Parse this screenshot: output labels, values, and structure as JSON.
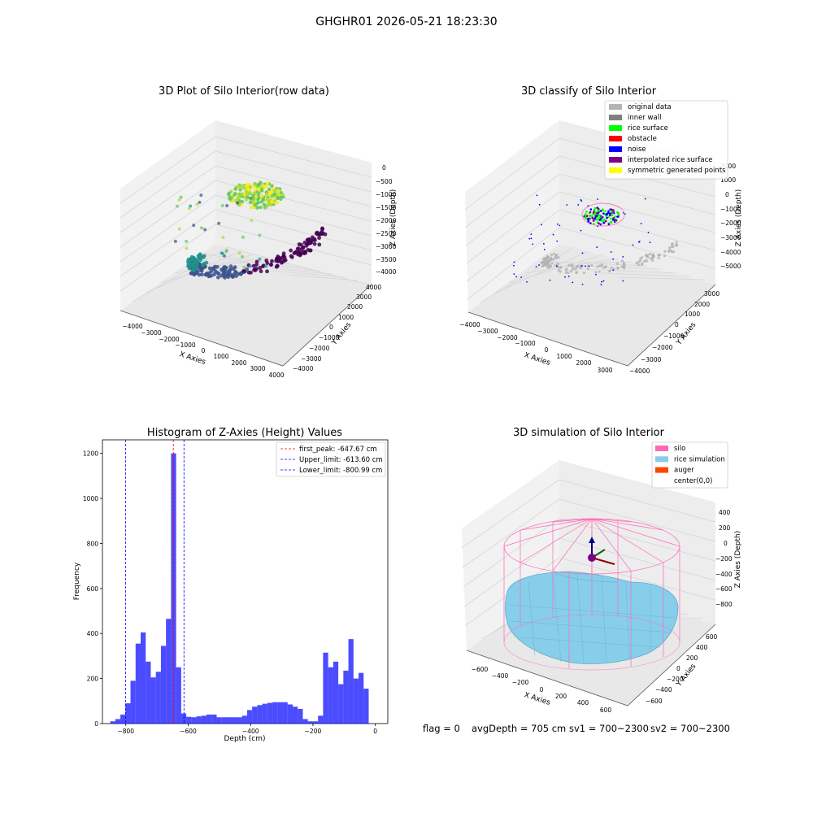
{
  "figure": {
    "suptitle": "GHGHR01 2026-05-21 18:23:30",
    "status": {
      "flag": "flag = 0",
      "avg_depth": "avgDepth = 705 cm",
      "sv1": "sv1 = 700~2300",
      "sv2": "sv2 = 700~2300"
    }
  },
  "chart_data": [
    {
      "type": "scatter",
      "projection": "3d",
      "title": "3D Plot of Silo Interior(row data)",
      "xlabel": "X Axies",
      "ylabel": "Y Axies",
      "zlabel": "Z Axies (Depth)",
      "xticks": [
        "−4000",
        "−3000",
        "−2000",
        "−1000",
        "0",
        "1000",
        "2000",
        "3000",
        "4000"
      ],
      "yticks": [
        "−4000",
        "−3000",
        "−2000",
        "−1000",
        "0",
        "1000",
        "2000",
        "3000",
        "4000"
      ],
      "zticks": [
        "0",
        "−500",
        "−1000",
        "−1500",
        "−2000",
        "−2500",
        "−3000",
        "−3500",
        "−4000"
      ],
      "colormap": "viridis",
      "grid": true
    },
    {
      "type": "scatter",
      "projection": "3d",
      "title": "3D classify of Silo Interior",
      "xlabel": "X Axies",
      "ylabel": "Y Axies",
      "zlabel": "Z Axies (Depth)",
      "xticks": [
        "−4000",
        "−3000",
        "−2000",
        "−1000",
        "0",
        "1000",
        "2000",
        "3000"
      ],
      "yticks": [
        "−4000",
        "−3000",
        "−2000",
        "−1000",
        "0",
        "1000",
        "2000",
        "3000"
      ],
      "zticks": [
        "2000",
        "1000",
        "0",
        "−1000",
        "−2000",
        "−3000",
        "−4000",
        "−5000"
      ],
      "legend_position": "upper-right",
      "legend": [
        {
          "label": "original data",
          "color": "#b3b3b3"
        },
        {
          "label": "inner wall",
          "color": "#808080"
        },
        {
          "label": "rice surface",
          "color": "#00ff00"
        },
        {
          "label": "obstacle",
          "color": "#ff0000"
        },
        {
          "label": "noise",
          "color": "#0000ff"
        },
        {
          "label": "interpolated rice surface",
          "color": "#800080"
        },
        {
          "label": "symmetric generated points",
          "color": "#ffff00"
        }
      ],
      "grid": true
    },
    {
      "type": "bar",
      "title": "Histogram of Z-Axies (Height) Values",
      "xlabel": "Depth (cm)",
      "ylabel": "Frequency",
      "xlim": [
        -875,
        40
      ],
      "ylim": [
        0,
        1260
      ],
      "xticks": [
        -800,
        -600,
        -400,
        -200,
        0
      ],
      "xtick_labels": [
        "−800",
        "−600",
        "−400",
        "−200",
        "0"
      ],
      "yticks": [
        0,
        200,
        400,
        600,
        800,
        1000,
        1200
      ],
      "yticks_labels": [
        "0",
        "200",
        "400",
        "600",
        "800",
        "1000",
        "1200"
      ],
      "bar_color": "#0000ff",
      "bin_start": -850,
      "bin_width": 16.25,
      "values": [
        10,
        20,
        40,
        90,
        190,
        355,
        405,
        275,
        205,
        230,
        345,
        465,
        1200,
        250,
        45,
        30,
        28,
        32,
        35,
        40,
        40,
        28,
        28,
        28,
        28,
        28,
        35,
        60,
        75,
        82,
        88,
        92,
        95,
        95,
        95,
        85,
        75,
        65,
        20,
        10,
        10,
        35,
        315,
        250,
        275,
        175,
        235,
        375,
        200,
        225,
        155
      ],
      "reference_lines": [
        {
          "label": "first_peak: -647.67 cm",
          "value": -647.67,
          "color": "#ff0000"
        },
        {
          "label": "Upper_limit: -613.60 cm",
          "value": -613.6,
          "color": "#0000ff"
        },
        {
          "label": "Lower_limit: -800.99 cm",
          "value": -800.99,
          "color": "#0000ff"
        }
      ],
      "legend_position": "upper-right"
    },
    {
      "type": "surface",
      "projection": "3d",
      "title": "3D simulation of Silo Interior",
      "xlabel": "X Axies",
      "ylabel": "Y Axies",
      "zlabel": "Z Axies (Depth)",
      "xticks": [
        "−600",
        "−400",
        "−200",
        "0",
        "200",
        "400",
        "600"
      ],
      "yticks": [
        "600",
        "400",
        "200",
        "0",
        "−200",
        "−400",
        "−600"
      ],
      "zticks": [
        "400",
        "200",
        "0",
        "−200",
        "−400",
        "−600",
        "−800"
      ],
      "legend_position": "upper-right",
      "legend": [
        {
          "label": "silo",
          "color": "#ff69b4"
        },
        {
          "label": "rice simulation",
          "color": "#87ceeb"
        },
        {
          "label": "auger",
          "color": "#ff4500"
        },
        {
          "label": "center(0,0)",
          "color": ""
        }
      ],
      "grid": true
    }
  ]
}
